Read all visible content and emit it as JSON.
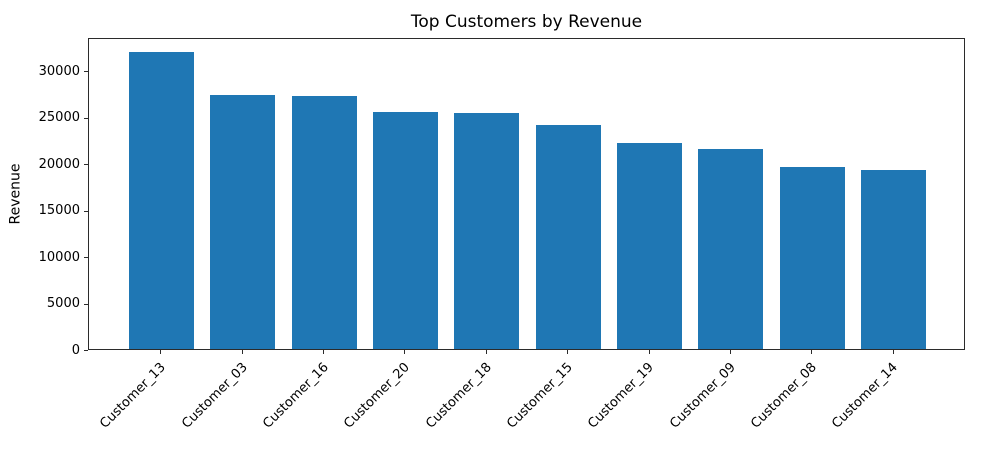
{
  "chart_data": {
    "type": "bar",
    "title": "Top Customers by Revenue",
    "xlabel": "",
    "ylabel": "Revenue",
    "categories": [
      "Customer_13",
      "Customer_03",
      "Customer_16",
      "Customer_20",
      "Customer_18",
      "Customer_15",
      "Customer_19",
      "Customer_09",
      "Customer_08",
      "Customer_14"
    ],
    "values": [
      32000,
      27400,
      27200,
      25500,
      25400,
      24100,
      22200,
      21500,
      19600,
      19300
    ],
    "yticks": [
      0,
      5000,
      10000,
      15000,
      20000,
      25000,
      30000
    ],
    "ylim": [
      0,
      33600
    ],
    "bar_color": "#1f77b4",
    "grid": false,
    "legend_position": "none"
  }
}
